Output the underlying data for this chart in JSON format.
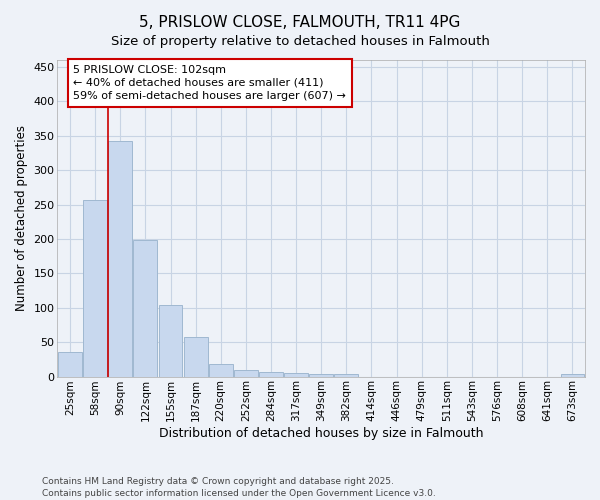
{
  "title": "5, PRISLOW CLOSE, FALMOUTH, TR11 4PG",
  "subtitle": "Size of property relative to detached houses in Falmouth",
  "xlabel": "Distribution of detached houses by size in Falmouth",
  "ylabel": "Number of detached properties",
  "categories": [
    "25sqm",
    "58sqm",
    "90sqm",
    "122sqm",
    "155sqm",
    "187sqm",
    "220sqm",
    "252sqm",
    "284sqm",
    "317sqm",
    "349sqm",
    "382sqm",
    "414sqm",
    "446sqm",
    "479sqm",
    "511sqm",
    "543sqm",
    "576sqm",
    "608sqm",
    "641sqm",
    "673sqm"
  ],
  "values": [
    35,
    256,
    343,
    198,
    104,
    57,
    18,
    10,
    7,
    5,
    4,
    3,
    0,
    0,
    0,
    0,
    0,
    0,
    0,
    0,
    4
  ],
  "bar_color": "#c8d8ee",
  "bar_edge_color": "#a0b8d0",
  "grid_color": "#c8d4e4",
  "background_color": "#eef2f8",
  "vline_color": "#cc0000",
  "annotation_text": "5 PRISLOW CLOSE: 102sqm\n← 40% of detached houses are smaller (411)\n59% of semi-detached houses are larger (607) →",
  "footer_text": "Contains HM Land Registry data © Crown copyright and database right 2025.\nContains public sector information licensed under the Open Government Licence v3.0.",
  "ylim": [
    0,
    460
  ],
  "yticks": [
    0,
    50,
    100,
    150,
    200,
    250,
    300,
    350,
    400,
    450
  ]
}
